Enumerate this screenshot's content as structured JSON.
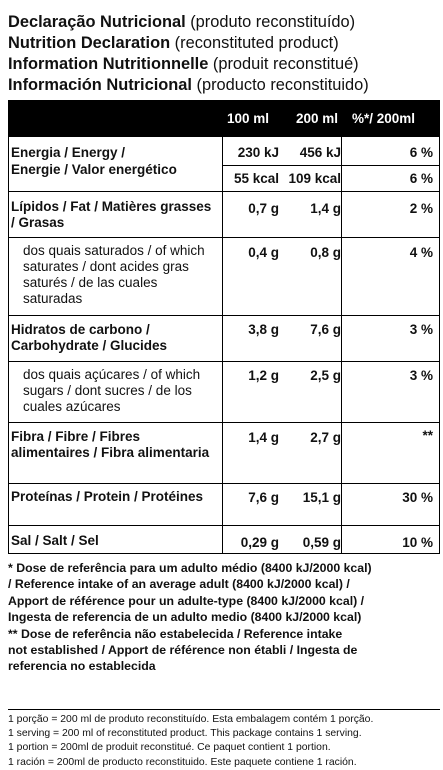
{
  "headings": [
    {
      "bold": "Declaração Nutricional",
      "normal": " (produto reconstituído)"
    },
    {
      "bold": "Nutrition Declaration",
      "normal": " (reconstituted product)"
    },
    {
      "bold": "Information Nutritionnelle",
      "normal": " (produit reconstitué)"
    },
    {
      "bold": "Información Nutricional",
      "normal": " (producto reconstituido)"
    }
  ],
  "table": {
    "header": {
      "col1": "100 ml",
      "col2": "200 ml",
      "col3": "%*/ 200ml"
    },
    "energy": {
      "line1": "Energia / Energy /",
      "line2": "Energie / Valor energético",
      "kj": {
        "v100": "230 kJ",
        "v200": "456 kJ",
        "pct": "6 %"
      },
      "kcal": {
        "v100": "55 kcal",
        "v200": "109 kcal",
        "pct": "6 %"
      }
    },
    "fat": {
      "label": "Lípidos / Fat / Matières grasses / Grasas",
      "v100": "0,7 g",
      "v200": "1,4 g",
      "pct": "2 %"
    },
    "saturates": {
      "label": "dos quais saturados / of which saturates / dont acides gras saturés / de las cuales saturadas",
      "v100": "0,4 g",
      "v200": "0,8 g",
      "pct": "4 %"
    },
    "carbs": {
      "label": "Hidratos de carbono / Carbohydrate / Glucides",
      "v100": "3,8 g",
      "v200": "7,6 g",
      "pct": "3 %"
    },
    "sugars": {
      "label": "dos quais açúcares / of which sugars / dont sucres / de los cuales azúcares",
      "v100": "1,2 g",
      "v200": "2,5 g",
      "pct": "3 %"
    },
    "fibre": {
      "label": "Fibra / Fibre / Fibres alimentaires / Fibra alimentaria",
      "v100": "1,4 g",
      "v200": "2,7 g",
      "pct": "**"
    },
    "protein": {
      "label": "Proteínas / Protein / Protéines",
      "v100": "7,6 g",
      "v200": "15,1 g",
      "pct": "30 %"
    },
    "salt": {
      "label": "Sal / Salt / Sel",
      "v100": "0,29 g",
      "v200": "0,59 g",
      "pct": "10 %"
    }
  },
  "notes": [
    "* Dose de referência para um adulto médio (8400 kJ/2000 kcal)",
    "/ Reference intake of an average adult (8400 kJ/2000 kcal) /",
    "Apport de référence pour un adulte-type (8400 kJ/2000 kcal) /",
    "Ingesta de referencia de un adulto medio (8400 kJ/2000 kcal)",
    "** Dose de referência não estabelecida / Reference intake",
    "not established / Apport de référence non établi / Ingesta de",
    "referencia no establecida"
  ],
  "footer": [
    "1 porção = 200 ml de produto reconstituído. Esta embalagem contém 1 porção.",
    "1 serving = 200 ml of reconstituted product. This package contains 1 serving.",
    "1 portion = 200ml de produit reconstitué. Ce paquet contient 1 portion.",
    "1 ración = 200ml de producto reconstituido. Este paquete contiene 1 ración."
  ]
}
